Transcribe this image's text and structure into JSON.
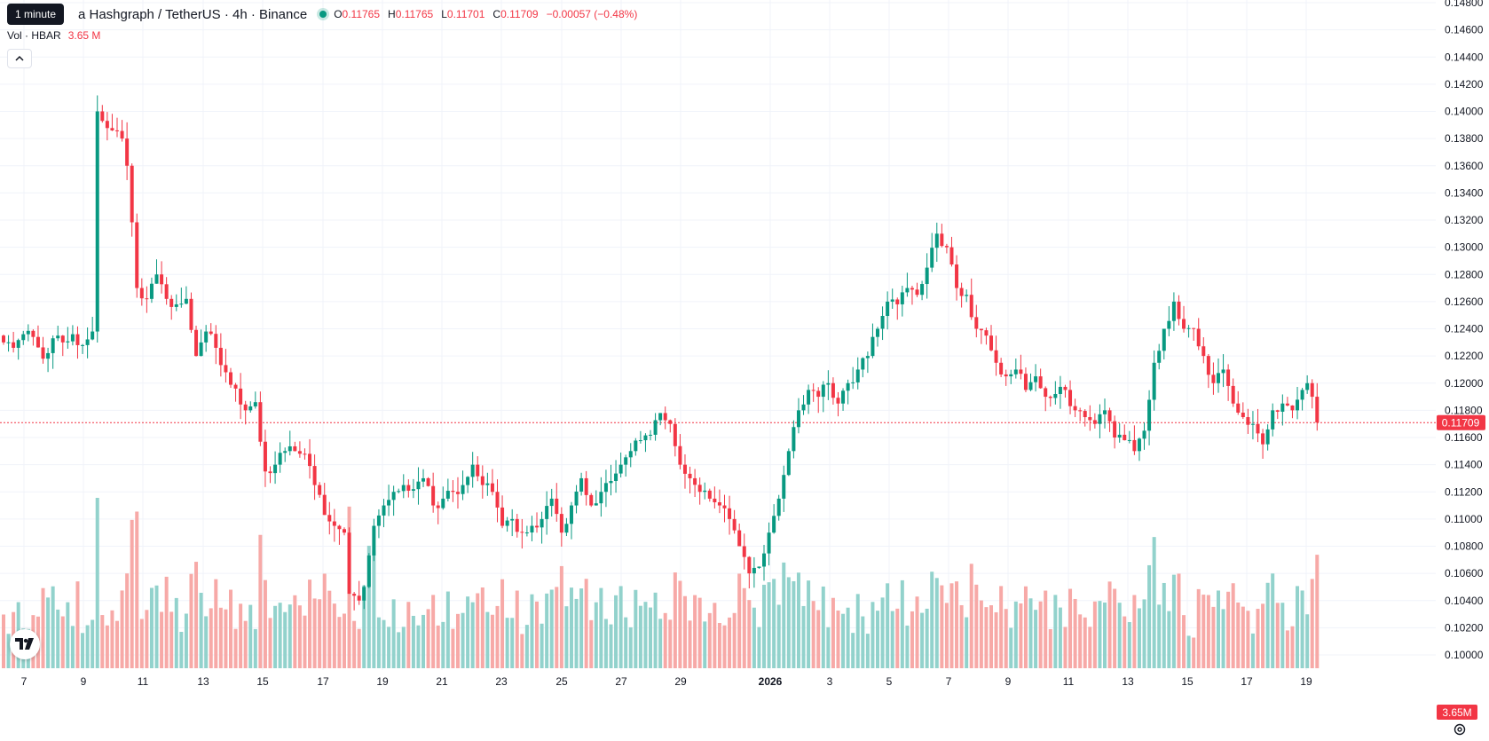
{
  "legend": {
    "tooltip": "1 minute",
    "symbol_title": "a Hashgraph / TetherUS · 4h · Binance",
    "o_label": "O",
    "o_value": "0.11765",
    "h_label": "H",
    "h_value": "0.11765",
    "l_label": "L",
    "l_value": "0.11701",
    "c_label": "C",
    "c_value": "0.11709",
    "change": "−0.00057 (−0.48%)",
    "vol_label": "Vol · HBAR",
    "vol_value": "3.65 M"
  },
  "icons": {
    "collapse": "chevron-up-icon",
    "logo": "tradingview-logo-icon",
    "settings": "gear-icon"
  },
  "colors": {
    "up": "#089981",
    "down": "#f23645",
    "up_volume": "#92d2cc",
    "down_volume": "#f7a9a7",
    "grid": "#f0f3fa",
    "axis_text": "#131722",
    "price_line": "#f23645"
  },
  "chart_data": {
    "type": "candlestick",
    "title": "a Hashgraph / TetherUS · 4h · Binance",
    "interval": "4h",
    "current_price": 0.11709,
    "current_price_label": "0.11709",
    "current_volume_label": "3.65M",
    "y_ticks": [
      "0.14800",
      "0.14600",
      "0.14400",
      "0.14200",
      "0.14000",
      "0.13800",
      "0.13600",
      "0.13400",
      "0.13200",
      "0.13000",
      "0.12800",
      "0.12600",
      "0.12400",
      "0.12200",
      "0.12000",
      "0.11800",
      "0.11600",
      "0.11400",
      "0.11200",
      "0.11000",
      "0.10800",
      "0.10600",
      "0.10400",
      "0.10200",
      "0.10000"
    ],
    "ylim": [
      0.09955,
      0.14815
    ],
    "x_ticks": [
      {
        "label": "7",
        "bold": false
      },
      {
        "label": "9",
        "bold": false
      },
      {
        "label": "11",
        "bold": false
      },
      {
        "label": "13",
        "bold": false
      },
      {
        "label": "15",
        "bold": false
      },
      {
        "label": "17",
        "bold": false
      },
      {
        "label": "19",
        "bold": false
      },
      {
        "label": "21",
        "bold": false
      },
      {
        "label": "23",
        "bold": false
      },
      {
        "label": "25",
        "bold": false
      },
      {
        "label": "27",
        "bold": false
      },
      {
        "label": "29",
        "bold": false
      },
      {
        "label": "2026",
        "bold": true
      },
      {
        "label": "3",
        "bold": false
      },
      {
        "label": "5",
        "bold": false
      },
      {
        "label": "7",
        "bold": false
      },
      {
        "label": "9",
        "bold": false
      },
      {
        "label": "11",
        "bold": false
      },
      {
        "label": "13",
        "bold": false
      },
      {
        "label": "15",
        "bold": false
      },
      {
        "label": "17",
        "bold": false
      },
      {
        "label": "19",
        "bold": false
      }
    ],
    "candles_per_day": 6,
    "close_anchors": [
      [
        0,
        0.123
      ],
      [
        2,
        0.1226
      ],
      [
        4,
        0.1236
      ],
      [
        6,
        0.1234
      ],
      [
        8,
        0.1218
      ],
      [
        10,
        0.1233
      ],
      [
        12,
        0.123
      ],
      [
        14,
        0.1236
      ],
      [
        16,
        0.1228
      ],
      [
        18,
        0.1238
      ],
      [
        19,
        0.14
      ],
      [
        20,
        0.1393
      ],
      [
        22,
        0.1386
      ],
      [
        24,
        0.138
      ],
      [
        25,
        0.136
      ],
      [
        27,
        0.127
      ],
      [
        29,
        0.1262
      ],
      [
        31,
        0.128
      ],
      [
        33,
        0.1262
      ],
      [
        35,
        0.1258
      ],
      [
        37,
        0.1262
      ],
      [
        39,
        0.122
      ],
      [
        41,
        0.1238
      ],
      [
        43,
        0.1226
      ],
      [
        45,
        0.1208
      ],
      [
        47,
        0.1196
      ],
      [
        49,
        0.118
      ],
      [
        51,
        0.1186
      ],
      [
        53,
        0.1135
      ],
      [
        55,
        0.114
      ],
      [
        57,
        0.115
      ],
      [
        59,
        0.115
      ],
      [
        61,
        0.1148
      ],
      [
        63,
        0.1125
      ],
      [
        65,
        0.1103
      ],
      [
        67,
        0.1095
      ],
      [
        69,
        0.109
      ],
      [
        70,
        0.1045
      ],
      [
        72,
        0.104
      ],
      [
        73,
        0.105
      ],
      [
        75,
        0.1095
      ],
      [
        77,
        0.111
      ],
      [
        79,
        0.112
      ],
      [
        81,
        0.1125
      ],
      [
        83,
        0.1122
      ],
      [
        85,
        0.113
      ],
      [
        87,
        0.111
      ],
      [
        89,
        0.1115
      ],
      [
        91,
        0.112
      ],
      [
        93,
        0.1125
      ],
      [
        95,
        0.114
      ],
      [
        97,
        0.1125
      ],
      [
        99,
        0.112
      ],
      [
        101,
        0.1095
      ],
      [
        103,
        0.11
      ],
      [
        105,
        0.109
      ],
      [
        107,
        0.1095
      ],
      [
        109,
        0.11
      ],
      [
        111,
        0.1115
      ],
      [
        113,
        0.109
      ],
      [
        115,
        0.111
      ],
      [
        117,
        0.113
      ],
      [
        119,
        0.111
      ],
      [
        121,
        0.112
      ],
      [
        123,
        0.1128
      ],
      [
        125,
        0.114
      ],
      [
        127,
        0.115
      ],
      [
        129,
        0.1158
      ],
      [
        131,
        0.1162
      ],
      [
        133,
        0.1178
      ],
      [
        135,
        0.117
      ],
      [
        137,
        0.114
      ],
      [
        139,
        0.113
      ],
      [
        141,
        0.112
      ],
      [
        143,
        0.1115
      ],
      [
        145,
        0.111
      ],
      [
        147,
        0.11
      ],
      [
        149,
        0.108
      ],
      [
        151,
        0.106
      ],
      [
        153,
        0.1065
      ],
      [
        155,
        0.109
      ],
      [
        157,
        0.1115
      ],
      [
        159,
        0.115
      ],
      [
        161,
        0.118
      ],
      [
        163,
        0.1195
      ],
      [
        165,
        0.119
      ],
      [
        167,
        0.12
      ],
      [
        169,
        0.1185
      ],
      [
        171,
        0.12
      ],
      [
        173,
        0.121
      ],
      [
        175,
        0.122
      ],
      [
        177,
        0.124
      ],
      [
        179,
        0.126
      ],
      [
        181,
        0.1258
      ],
      [
        183,
        0.127
      ],
      [
        185,
        0.1265
      ],
      [
        187,
        0.1285
      ],
      [
        189,
        0.131
      ],
      [
        191,
        0.13
      ],
      [
        193,
        0.127
      ],
      [
        195,
        0.1265
      ],
      [
        197,
        0.124
      ],
      [
        199,
        0.1235
      ],
      [
        201,
        0.1215
      ],
      [
        203,
        0.1205
      ],
      [
        205,
        0.121
      ],
      [
        207,
        0.1195
      ],
      [
        209,
        0.1205
      ],
      [
        211,
        0.119
      ],
      [
        213,
        0.1192
      ],
      [
        215,
        0.1195
      ],
      [
        217,
        0.118
      ],
      [
        219,
        0.1175
      ],
      [
        221,
        0.117
      ],
      [
        223,
        0.118
      ],
      [
        225,
        0.116
      ],
      [
        227,
        0.1158
      ],
      [
        229,
        0.115
      ],
      [
        231,
        0.1165
      ],
      [
        233,
        0.1215
      ],
      [
        235,
        0.124
      ],
      [
        237,
        0.126
      ],
      [
        239,
        0.124
      ],
      [
        241,
        0.124
      ],
      [
        243,
        0.122
      ],
      [
        245,
        0.12
      ],
      [
        247,
        0.121
      ],
      [
        249,
        0.1185
      ],
      [
        251,
        0.1175
      ],
      [
        253,
        0.117
      ],
      [
        255,
        0.1155
      ],
      [
        257,
        0.118
      ],
      [
        259,
        0.1185
      ],
      [
        261,
        0.118
      ],
      [
        263,
        0.1195
      ],
      [
        264,
        0.12
      ],
      [
        265,
        0.119
      ],
      [
        266,
        0.1171
      ]
    ],
    "volume_axis_max_m": 10,
    "volume_range_m": [
      1.5,
      9.6
    ]
  }
}
